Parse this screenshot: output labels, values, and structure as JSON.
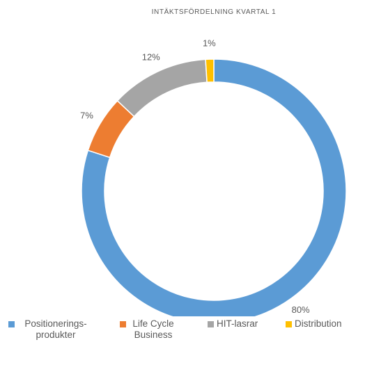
{
  "chart_data": {
    "type": "donut",
    "title": "INTÄKTSFÖRDELNING  KVARTAL  1",
    "categories": [
      "Positionerings-produkter",
      "Life Cycle Business",
      "HIT-lasrar",
      "Distribution"
    ],
    "values": [
      80,
      7,
      12,
      1
    ],
    "value_labels": [
      "80%",
      "7%",
      "12%",
      "1%"
    ],
    "colors": [
      "#5b9bd5",
      "#ed7d31",
      "#a5a5a5",
      "#ffc000"
    ],
    "legend": "bottom"
  }
}
